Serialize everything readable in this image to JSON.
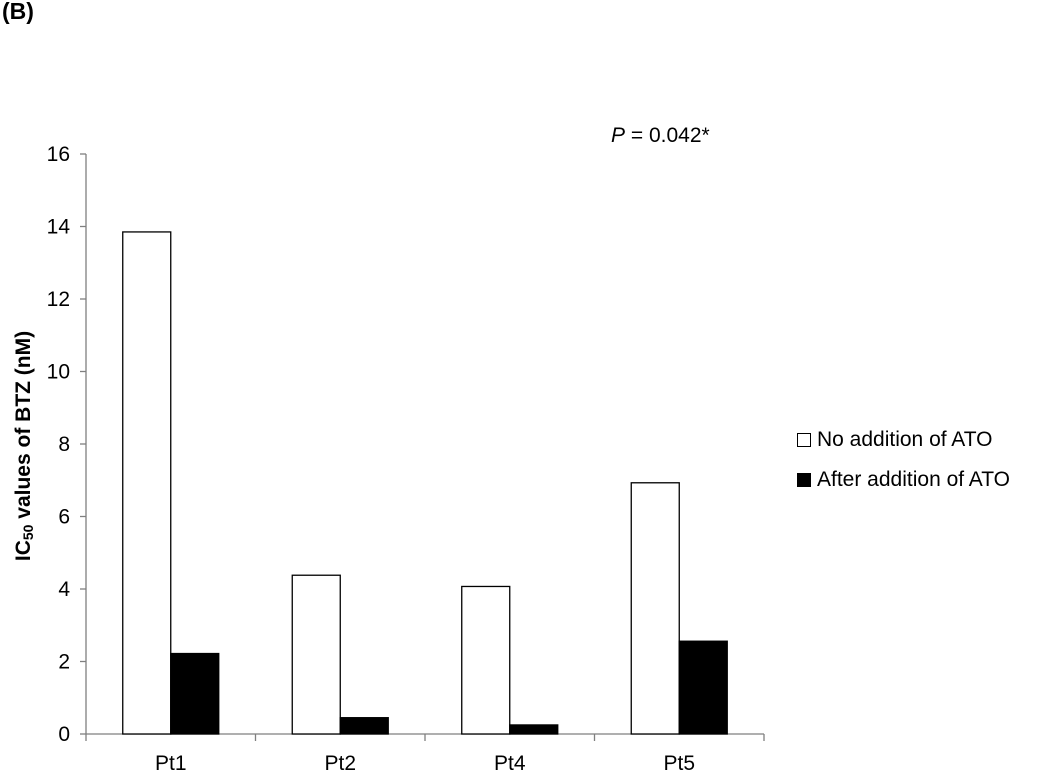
{
  "panel_label": "(B)",
  "annotation": {
    "p_symbol": "P",
    "p_rest": " = 0.042*"
  },
  "ylabel": {
    "prefix": "IC",
    "subscript": "50",
    "suffix": " values of BTZ (nM)"
  },
  "chart_data": {
    "type": "bar",
    "categories": [
      "Pt1",
      "Pt2",
      "Pt4",
      "Pt5"
    ],
    "series": [
      {
        "name": "No addition of ATO",
        "values": [
          13.85,
          4.38,
          4.07,
          6.93
        ],
        "color": "#ffffff",
        "stroke": "#000000"
      },
      {
        "name": "After addition of ATO",
        "values": [
          2.22,
          0.45,
          0.25,
          2.56
        ],
        "color": "#000000",
        "stroke": "#000000"
      }
    ],
    "ylim": [
      0,
      16
    ],
    "yticks": [
      0,
      2,
      4,
      6,
      8,
      10,
      12,
      14,
      16
    ],
    "grid": false,
    "legend_position": "right"
  }
}
